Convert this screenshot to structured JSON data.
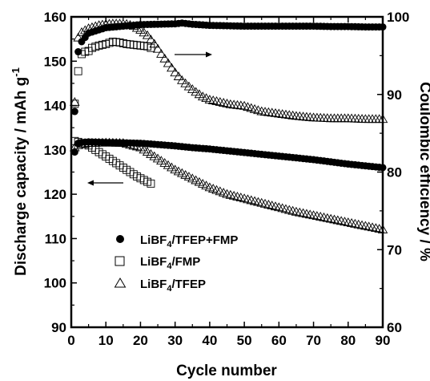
{
  "chart_data": {
    "type": "scatter",
    "title": "",
    "xlabel": "Cycle number",
    "ylabel_left": "Discharge capacity / mAh g",
    "ylabel_left_sup": "-1",
    "ylabel_right": "Coulombic efficiency / %",
    "xlim": [
      0,
      90
    ],
    "ylim_left": [
      90,
      160
    ],
    "ylim_right": [
      60,
      100
    ],
    "x_ticks": [
      0,
      10,
      20,
      30,
      40,
      50,
      60,
      70,
      80,
      90
    ],
    "y_left_ticks": [
      90,
      100,
      110,
      120,
      130,
      140,
      150,
      160
    ],
    "y_right_ticks": [
      60,
      70,
      80,
      90,
      100
    ],
    "x_tick_labels": [
      "0",
      "10",
      "20",
      "30",
      "40",
      "50",
      "60",
      "70",
      "80",
      "90"
    ],
    "y_left_tick_labels": [
      "90",
      "100",
      "110",
      "120",
      "130",
      "140",
      "150",
      "160"
    ],
    "y_right_tick_labels": [
      "60",
      "70",
      "80",
      "90",
      "100"
    ],
    "grid": false,
    "legend_position": "lower-left",
    "series": [
      {
        "name": "LiBF4/TFEP+FMP",
        "legend_base": "LiBF",
        "legend_sub": "4",
        "legend_rest": "/TFEP+FMP",
        "marker": "circle-filled",
        "capacity": {
          "x": [
            1,
            2,
            3,
            5,
            10,
            15,
            20,
            25,
            30,
            35,
            40,
            45,
            50,
            55,
            60,
            65,
            70,
            75,
            80,
            85,
            90
          ],
          "y": [
            129.5,
            131.5,
            131.7,
            131.8,
            131.7,
            131.6,
            131.5,
            131.2,
            130.9,
            130.5,
            130.2,
            129.8,
            129.4,
            129.0,
            128.6,
            128.2,
            127.8,
            127.3,
            126.8,
            126.4,
            126.0
          ]
        },
        "efficiency": {
          "x": [
            1,
            2,
            3,
            5,
            10,
            15,
            20,
            25,
            30,
            32,
            35,
            40,
            45,
            50,
            55,
            60,
            65,
            70,
            75,
            80,
            85,
            90
          ],
          "y": [
            87.8,
            95.5,
            96.8,
            97.9,
            98.6,
            98.8,
            99.0,
            99.05,
            99.1,
            99.2,
            99.05,
            98.9,
            98.85,
            98.8,
            98.8,
            98.8,
            98.8,
            98.8,
            98.75,
            98.75,
            98.7,
            98.7
          ]
        }
      },
      {
        "name": "LiBF4/FMP",
        "legend_base": "LiBF",
        "legend_sub": "4",
        "legend_rest": "/FMP",
        "marker": "square-open",
        "capacity": {
          "x": [
            1,
            2,
            3,
            4,
            5,
            6,
            7,
            8,
            9,
            10,
            11,
            12,
            13,
            14,
            15,
            16,
            17,
            18,
            19,
            20,
            21,
            22,
            23
          ],
          "y": [
            132.0,
            131.8,
            131.5,
            131.3,
            131.0,
            130.5,
            130.0,
            129.5,
            129.0,
            128.5,
            128.0,
            127.5,
            127.0,
            126.5,
            126.0,
            125.5,
            125.0,
            124.5,
            124.0,
            123.6,
            123.2,
            122.8,
            122.4
          ]
        },
        "efficiency": {
          "x": [
            1,
            2,
            3,
            4,
            5,
            6,
            8,
            10,
            12,
            14,
            16,
            18,
            20,
            22,
            23
          ],
          "y": [
            88.8,
            93.0,
            95.2,
            95.5,
            95.6,
            96.0,
            96.3,
            96.5,
            96.8,
            96.7,
            96.5,
            96.4,
            96.3,
            96.2,
            96.0
          ]
        }
      },
      {
        "name": "LiBF4/TFEP",
        "legend_base": "LiBF",
        "legend_sub": "4",
        "legend_rest": "/TFEP",
        "marker": "triangle-open",
        "capacity": {
          "x": [
            1,
            2,
            3,
            5,
            10,
            15,
            20,
            25,
            30,
            35,
            40,
            45,
            50,
            55,
            60,
            65,
            70,
            75,
            80,
            85,
            90
          ],
          "y": [
            130.5,
            131.0,
            131.3,
            131.5,
            131.6,
            131.5,
            130.5,
            128.0,
            125.5,
            123.5,
            121.5,
            120.0,
            119.0,
            118.0,
            117.0,
            116.0,
            115.2,
            114.4,
            113.6,
            112.8,
            112.0
          ]
        },
        "efficiency": {
          "x": [
            1,
            2,
            3,
            5,
            8,
            10,
            12,
            14,
            16,
            18,
            20,
            22,
            24,
            26,
            28,
            30,
            32,
            34,
            36,
            38,
            40,
            42,
            44,
            46,
            50,
            55,
            60,
            65,
            70,
            75,
            80,
            85,
            90
          ],
          "y": [
            89.0,
            97.3,
            98.0,
            98.5,
            98.9,
            99.05,
            99.1,
            99.1,
            99.05,
            98.8,
            98.3,
            97.6,
            96.5,
            95.2,
            94.0,
            92.8,
            91.8,
            91.0,
            90.3,
            89.7,
            89.3,
            89.1,
            88.9,
            88.7,
            88.5,
            87.8,
            87.5,
            87.2,
            87.0,
            86.9,
            86.9,
            86.8,
            86.8
          ]
        }
      }
    ]
  }
}
